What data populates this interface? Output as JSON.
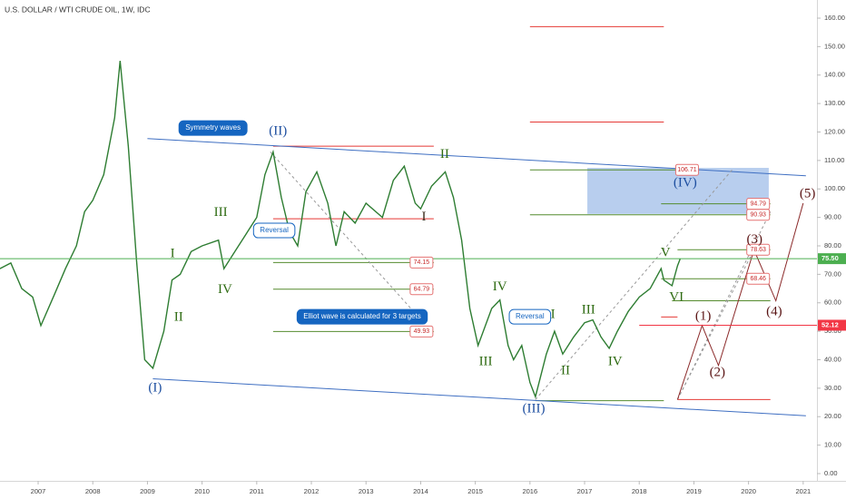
{
  "chart_data": {
    "type": "line",
    "title": "U.S. DOLLAR / WTI CRUDE OIL, 1W, IDC",
    "color": "#2e7d32",
    "xlim": [
      2006.302,
      2021.252
    ],
    "ylim": [
      -2.55,
      166.37
    ],
    "xticks": [
      2007,
      2008,
      2009,
      2010,
      2011,
      2012,
      2013,
      2014,
      2015,
      2016,
      2017,
      2018,
      2019,
      2020,
      2021
    ],
    "yticks": [
      {
        "value": 160,
        "label": "160.00"
      },
      {
        "value": 150,
        "label": "150.00"
      },
      {
        "value": 140,
        "label": "140.00"
      },
      {
        "value": 130,
        "label": "130.00"
      },
      {
        "value": 120,
        "label": "120.00"
      },
      {
        "value": 110,
        "label": "110.00"
      },
      {
        "value": 100,
        "label": "100.00"
      },
      {
        "value": 90,
        "label": "90.00"
      },
      {
        "value": 80,
        "label": "80.00"
      },
      {
        "value": 70,
        "label": "70.00"
      },
      {
        "value": 60,
        "label": "60.00"
      },
      {
        "value": 50,
        "label": "50.00"
      },
      {
        "value": 40,
        "label": "40.00"
      },
      {
        "value": 30,
        "label": "30.00"
      },
      {
        "value": 20,
        "label": "20.00"
      },
      {
        "value": 10,
        "label": "10.00"
      },
      {
        "value": 0,
        "label": "0.00"
      }
    ],
    "x": [
      2006.3,
      2006.5,
      2006.7,
      2006.9,
      2007.05,
      2007.3,
      2007.5,
      2007.7,
      2007.85,
      2008.0,
      2008.2,
      2008.4,
      2008.5,
      2008.65,
      2008.8,
      2008.95,
      2009.1,
      2009.3,
      2009.45,
      2009.6,
      2009.8,
      2010.0,
      2010.3,
      2010.4,
      2010.6,
      2010.8,
      2011.0,
      2011.15,
      2011.3,
      2011.45,
      2011.6,
      2011.75,
      2011.9,
      2012.1,
      2012.3,
      2012.45,
      2012.6,
      2012.8,
      2013.0,
      2013.3,
      2013.5,
      2013.7,
      2013.9,
      2014.0,
      2014.2,
      2014.45,
      2014.6,
      2014.75,
      2014.9,
      2015.05,
      2015.3,
      2015.45,
      2015.6,
      2015.7,
      2015.85,
      2016.0,
      2016.1,
      2016.3,
      2016.45,
      2016.6,
      2016.8,
      2017.0,
      2017.15,
      2017.3,
      2017.45,
      2017.6,
      2017.8,
      2018.0,
      2018.2,
      2018.4,
      2018.45,
      2018.6,
      2018.7,
      2018.75
    ],
    "values": [
      72,
      74,
      65,
      62,
      52,
      63,
      72,
      80,
      92,
      96,
      105,
      125,
      145,
      115,
      75,
      40,
      37,
      50,
      68,
      70,
      78,
      80,
      82,
      72,
      78,
      84,
      90,
      105,
      113,
      97,
      85,
      80,
      99,
      106,
      95,
      80,
      92,
      88,
      95,
      90,
      103,
      108,
      95,
      93,
      101,
      106,
      97,
      82,
      58,
      45,
      58,
      61,
      45,
      40,
      45,
      32,
      27,
      42,
      50,
      42,
      48,
      53,
      54,
      48,
      44,
      50,
      57,
      62,
      65,
      72,
      68,
      66,
      73,
      75.5
    ],
    "price_tags": [
      {
        "value": 75.5,
        "label": "75.50",
        "color": "#4caf50",
        "from": 2006.302
      },
      {
        "value": 52.12,
        "color": "#f23645",
        "from": 2018.0
      }
    ],
    "levels": [
      {
        "value": 157,
        "from": 2016.0,
        "to": 2018.45,
        "color": "#e53935"
      },
      {
        "value": 123.5,
        "from": 2016.0,
        "to": 2018.45,
        "color": "#e53935"
      },
      {
        "value": 115,
        "from": 2011.3,
        "to": 2014.24,
        "color": "#e53935"
      },
      {
        "value": 89.5,
        "from": 2011.3,
        "to": 2014.24,
        "color": "#e53935"
      },
      {
        "value": 106.71,
        "from": 2016.0,
        "to": 2019.1,
        "color": "#558b2f",
        "tag": true
      },
      {
        "value": 90.93,
        "from": 2016.0,
        "to": 2020.4,
        "color": "#558b2f",
        "tag": true
      },
      {
        "value": 94.79,
        "from": 2018.4,
        "to": 2020.4,
        "color": "#558b2f",
        "tag": true
      },
      {
        "value": 74.15,
        "from": 2011.3,
        "to": 2014.24,
        "color": "#558b2f",
        "tag": true
      },
      {
        "value": 64.79,
        "from": 2011.3,
        "to": 2014.24,
        "color": "#558b2f",
        "tag": true
      },
      {
        "value": 49.93,
        "from": 2011.3,
        "to": 2014.24,
        "color": "#558b2f",
        "tag": true
      },
      {
        "value": 78.63,
        "from": 2018.7,
        "to": 2020.4,
        "color": "#558b2f",
        "tag": true
      },
      {
        "value": 68.46,
        "from": 2018.4,
        "to": 2020.4,
        "color": "#558b2f",
        "tag": true
      },
      {
        "value": 60.7,
        "from": 2018.6,
        "to": 2020.4,
        "color": "#558b2f"
      },
      {
        "value": 25.6,
        "from": 2016.1,
        "to": 2018.45,
        "color": "#558b2f"
      },
      {
        "value": 26,
        "from": 2018.7,
        "to": 2020.4,
        "color": "#e53935"
      },
      {
        "value": 55,
        "from": 2018.4,
        "to": 2018.7,
        "color": "#e53935"
      }
    ],
    "zones": [
      {
        "from": 2017.05,
        "to": 2020.37,
        "low": 91.2,
        "high": 107.4,
        "color": "#7ea6e0"
      }
    ],
    "lines": [
      {
        "x": [
          2009.0,
          2021.05
        ],
        "y": [
          117.7,
          104.6
        ],
        "color": "#3f6fc2"
      },
      {
        "x": [
          2009.1,
          2021.05
        ],
        "y": [
          33.3,
          20.3
        ],
        "color": "#3f6fc2"
      },
      {
        "x": [
          2011.25,
          2014.2
        ],
        "y": [
          113,
          49.9
        ],
        "color": "#999999",
        "dash": true
      },
      {
        "x": [
          2016.1,
          2019.7
        ],
        "y": [
          26,
          106.7
        ],
        "color": "#999999",
        "dash": true
      },
      {
        "x": [
          2018.7,
          2020.1
        ],
        "y": [
          26,
          78.6
        ],
        "color": "#999999",
        "dash": true
      },
      {
        "x": [
          2018.7,
          2020.4
        ],
        "y": [
          26,
          92
        ],
        "color": "#999999",
        "dash": true
      },
      {
        "x": [
          2018.7,
          2019.15,
          2019.45,
          2020.1,
          2020.5,
          2021.0
        ],
        "y": [
          26,
          52,
          38,
          78.6,
          60.7,
          95
        ],
        "color": "#8b2a2a"
      }
    ],
    "wave_labels": [
      {
        "text": "(II)",
        "x": 2011.39,
        "y": 120.1,
        "color": "#1e4fa0"
      },
      {
        "text": "(I)",
        "x": 2009.14,
        "y": 30.0,
        "color": "#1e4fa0"
      },
      {
        "text": "(III)",
        "x": 2016.07,
        "y": 22.6,
        "color": "#1e4fa0"
      },
      {
        "text": "(IV)",
        "x": 2018.84,
        "y": 102.0,
        "color": "#1e4fa0"
      },
      {
        "text": "I",
        "x": 2009.46,
        "y": 77.1,
        "color": "#2e6b12"
      },
      {
        "text": "II",
        "x": 2009.57,
        "y": 54.8,
        "color": "#2e6b12"
      },
      {
        "text": "III",
        "x": 2010.34,
        "y": 91.6,
        "color": "#2e6b12"
      },
      {
        "text": "IV",
        "x": 2010.42,
        "y": 64.5,
        "color": "#2e6b12"
      },
      {
        "text": "I",
        "x": 2014.06,
        "y": 90.0,
        "color": "#3a2a1a"
      },
      {
        "text": "II",
        "x": 2014.44,
        "y": 112.0,
        "color": "#2e6b12"
      },
      {
        "text": "IV",
        "x": 2015.45,
        "y": 65.4,
        "color": "#2e6b12"
      },
      {
        "text": "III",
        "x": 2015.19,
        "y": 39.2,
        "color": "#2e6b12"
      },
      {
        "text": "I",
        "x": 2016.42,
        "y": 55.8,
        "color": "#2e6b12"
      },
      {
        "text": "II",
        "x": 2016.65,
        "y": 36.0,
        "color": "#2e6b12"
      },
      {
        "text": "III",
        "x": 2017.07,
        "y": 57.4,
        "color": "#2e6b12"
      },
      {
        "text": "IV",
        "x": 2017.56,
        "y": 39.2,
        "color": "#2e6b12"
      },
      {
        "text": "V",
        "x": 2018.48,
        "y": 77.4,
        "color": "#2e6b12"
      },
      {
        "text": "VI",
        "x": 2018.68,
        "y": 61.8,
        "color": "#2e6b12"
      },
      {
        "text": "(1)",
        "x": 2019.17,
        "y": 55.1,
        "color": "#5a1414"
      },
      {
        "text": "(2)",
        "x": 2019.43,
        "y": 35.4,
        "color": "#5a1414"
      },
      {
        "text": "(3)",
        "x": 2020.11,
        "y": 82.0,
        "color": "#5a1414"
      },
      {
        "text": "(4)",
        "x": 2020.47,
        "y": 56.7,
        "color": "#5a1414"
      },
      {
        "text": "(5)",
        "x": 2021.08,
        "y": 98.2,
        "color": "#5a1414"
      }
    ],
    "callouts": [
      {
        "text": "Symmetry waves",
        "x": 2010.2,
        "y": 121.4,
        "style": "filled"
      },
      {
        "text": "Reversal",
        "x": 2011.32,
        "y": 85.4,
        "style": "outline"
      },
      {
        "text": "Reversal",
        "x": 2016.0,
        "y": 55.1,
        "style": "outline"
      },
      {
        "text": "Elliot wave is calculated for 3 targets",
        "x": 2012.93,
        "y": 55.1,
        "style": "filled"
      }
    ]
  }
}
